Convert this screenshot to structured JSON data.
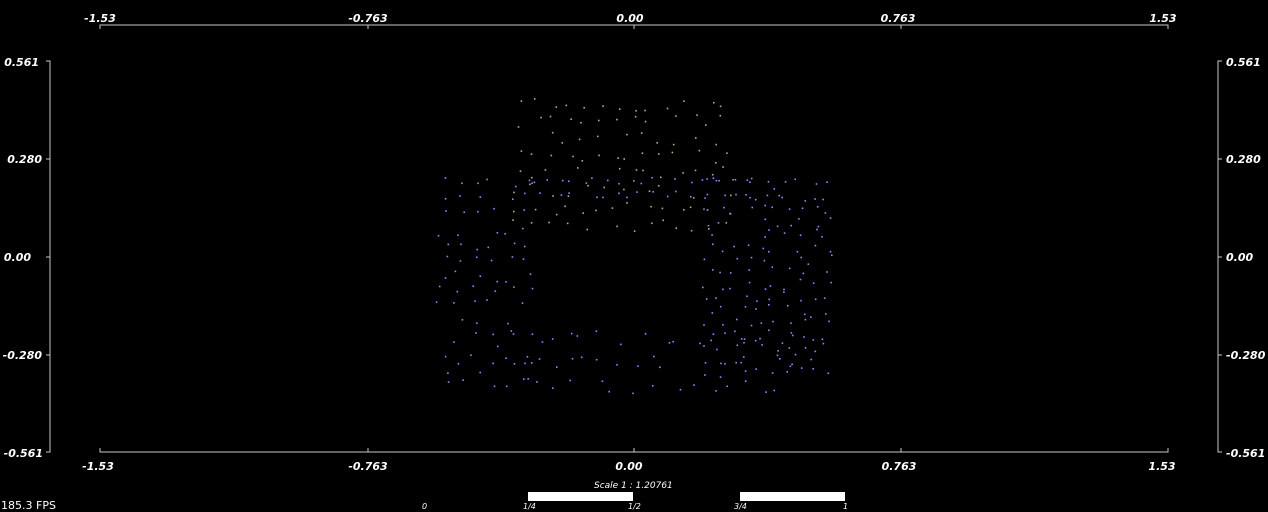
{
  "viewer": {
    "fps_label": "185.3 FPS",
    "scale_label": "Scale 1 : 1.20761",
    "scale_ticks": [
      "0",
      "1/4",
      "1/2",
      "3/4",
      "1"
    ]
  },
  "axes": {
    "x_ticks": [
      "-1.53",
      "-0.763",
      "0.00",
      "0.763",
      "1.53"
    ],
    "y_ticks": [
      "0.561",
      "0.280",
      "0.00",
      "-0.280",
      "-0.561"
    ]
  },
  "colors": {
    "background": "#000000",
    "point_blue": "#8c8cff",
    "point_olive": "#b4b46e",
    "axis": "#c8c8c8"
  },
  "point_cloud": {
    "x_range": [
      -1.53,
      1.53
    ],
    "y_range": [
      -0.561,
      0.561
    ],
    "clusters": [
      {
        "name": "rear-surface",
        "color": "point_olive",
        "rows": 8,
        "cols": 14,
        "x": [
          -0.33,
          0.26
        ],
        "y": [
          0.09,
          0.44
        ]
      },
      {
        "name": "left-wall",
        "color": "point_blue",
        "rows": 14,
        "cols": 6,
        "x": [
          -0.55,
          -0.31
        ],
        "y": [
          -0.36,
          0.21
        ]
      },
      {
        "name": "right-wall",
        "color": "point_blue",
        "rows": 16,
        "cols": 10,
        "x": [
          0.21,
          0.55
        ],
        "y": [
          -0.33,
          0.21
        ]
      },
      {
        "name": "top-ridge",
        "color": "point_blue",
        "rows": 2,
        "cols": 22,
        "x": [
          -0.31,
          0.38
        ],
        "y": [
          0.18,
          0.22
        ]
      },
      {
        "name": "bottom-floor",
        "color": "point_blue",
        "rows": 3,
        "cols": 18,
        "x": [
          -0.33,
          0.45
        ],
        "y": [
          -0.37,
          -0.23
        ]
      }
    ]
  }
}
